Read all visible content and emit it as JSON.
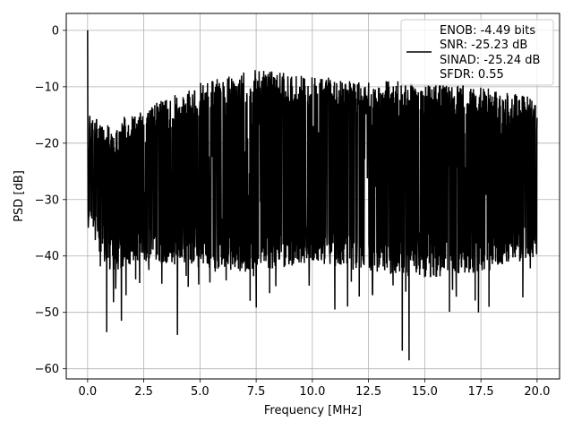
{
  "chart_data": {
    "type": "line",
    "xlabel": "Frequency [MHz]",
    "ylabel": "PSD [dB]",
    "xlim": [
      -0.95,
      21.0
    ],
    "ylim": [
      -61.8,
      3.0
    ],
    "xticks": [
      0.0,
      2.5,
      5.0,
      7.5,
      10.0,
      12.5,
      15.0,
      17.5,
      20.0
    ],
    "xtick_labels": [
      "0.0",
      "2.5",
      "5.0",
      "7.5",
      "10.0",
      "12.5",
      "15.0",
      "17.5",
      "20.0"
    ],
    "yticks": [
      0,
      -10,
      -20,
      -30,
      -40,
      -50,
      -60
    ],
    "ytick_labels": [
      "0",
      "−10",
      "−20",
      "−30",
      "−40",
      "−50",
      "−60"
    ],
    "grid": true,
    "legend": {
      "placement": "top-right",
      "entries": [
        "ENOB: -4.49 bits",
        "SNR: -25.23 dB",
        "SINAD: -25.24 dB",
        "SFDR: 0.55"
      ]
    },
    "series": [
      {
        "color": "#000000",
        "x_range": [
          0.0,
          20.0
        ],
        "points": 2048,
        "peak": {
          "x": 0.0,
          "y": 0.0
        },
        "upper_envelope": {
          "x": [
            0.0,
            1.0,
            2.5,
            5.0,
            7.5,
            10.0,
            12.5,
            15.0,
            17.5,
            20.0
          ],
          "y": [
            -15,
            -16,
            -14,
            -9,
            -7,
            -8,
            -9,
            -9,
            -10,
            -12
          ]
        },
        "lower_envelope": {
          "x": [
            0.0,
            1.0,
            2.5,
            5.0,
            7.5,
            10.0,
            12.5,
            15.0,
            17.5,
            20.0
          ],
          "y": [
            -35,
            -43,
            -41,
            -42,
            -43,
            -41,
            -43,
            -44,
            -43,
            -40
          ]
        },
        "notable_dips": [
          {
            "x": 0.85,
            "y": -53.5
          },
          {
            "x": 1.5,
            "y": -51.5
          },
          {
            "x": 4.0,
            "y": -54.0
          },
          {
            "x": 11.0,
            "y": -49.5
          },
          {
            "x": 14.0,
            "y": -56.8
          },
          {
            "x": 14.3,
            "y": -58.5
          }
        ]
      }
    ]
  }
}
